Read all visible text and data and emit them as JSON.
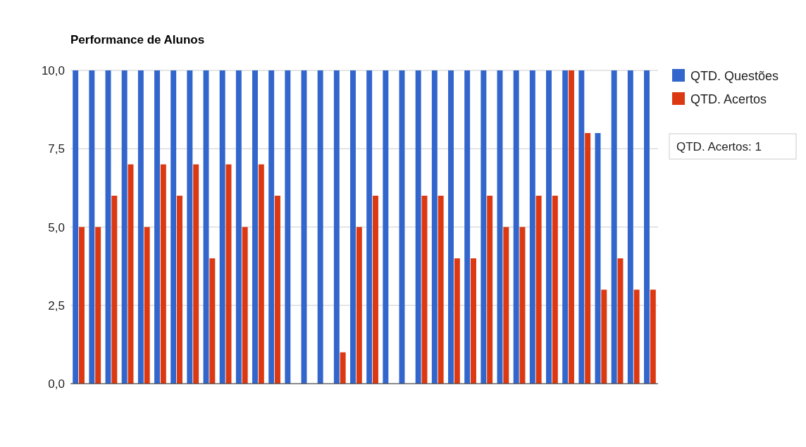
{
  "chart_data": {
    "type": "bar",
    "title": "Performance de Alunos",
    "categories": [
      null,
      null,
      null,
      null,
      null,
      null,
      null,
      null,
      null,
      null,
      null,
      null,
      null,
      null,
      null,
      null,
      null,
      null,
      null,
      null,
      null,
      null,
      null,
      null,
      null,
      null,
      null,
      null,
      null,
      null,
      null,
      null,
      null,
      null,
      null,
      null
    ],
    "series": [
      {
        "name": "QTD. Questões",
        "color": "#3366cc",
        "values": [
          10,
          10,
          10,
          10,
          10,
          10,
          10,
          10,
          10,
          10,
          10,
          10,
          10,
          10,
          10,
          10,
          10,
          10,
          10,
          10,
          10,
          10,
          10,
          10,
          10,
          10,
          10,
          10,
          10,
          10,
          10,
          10,
          8,
          10,
          10,
          10
        ]
      },
      {
        "name": "QTD. Acertos",
        "color": "#dc3912",
        "values": [
          5,
          5,
          6,
          7,
          5,
          7,
          6,
          7,
          4,
          7,
          5,
          7,
          6,
          null,
          null,
          null,
          1,
          5,
          6,
          null,
          null,
          6,
          6,
          4,
          4,
          6,
          5,
          5,
          6,
          6,
          10,
          8,
          3,
          4,
          3,
          3
        ]
      }
    ],
    "ylim": [
      0,
      10
    ],
    "yticks": [
      {
        "value": 0,
        "label": "0,0"
      },
      {
        "value": 2.5,
        "label": "2,5"
      },
      {
        "value": 5,
        "label": "5,0"
      },
      {
        "value": 7.5,
        "label": "7,5"
      },
      {
        "value": 10,
        "label": "10,0"
      }
    ],
    "grid": "y",
    "legend": "right",
    "annotations": [
      "QTD. Acertos: 1"
    ]
  }
}
